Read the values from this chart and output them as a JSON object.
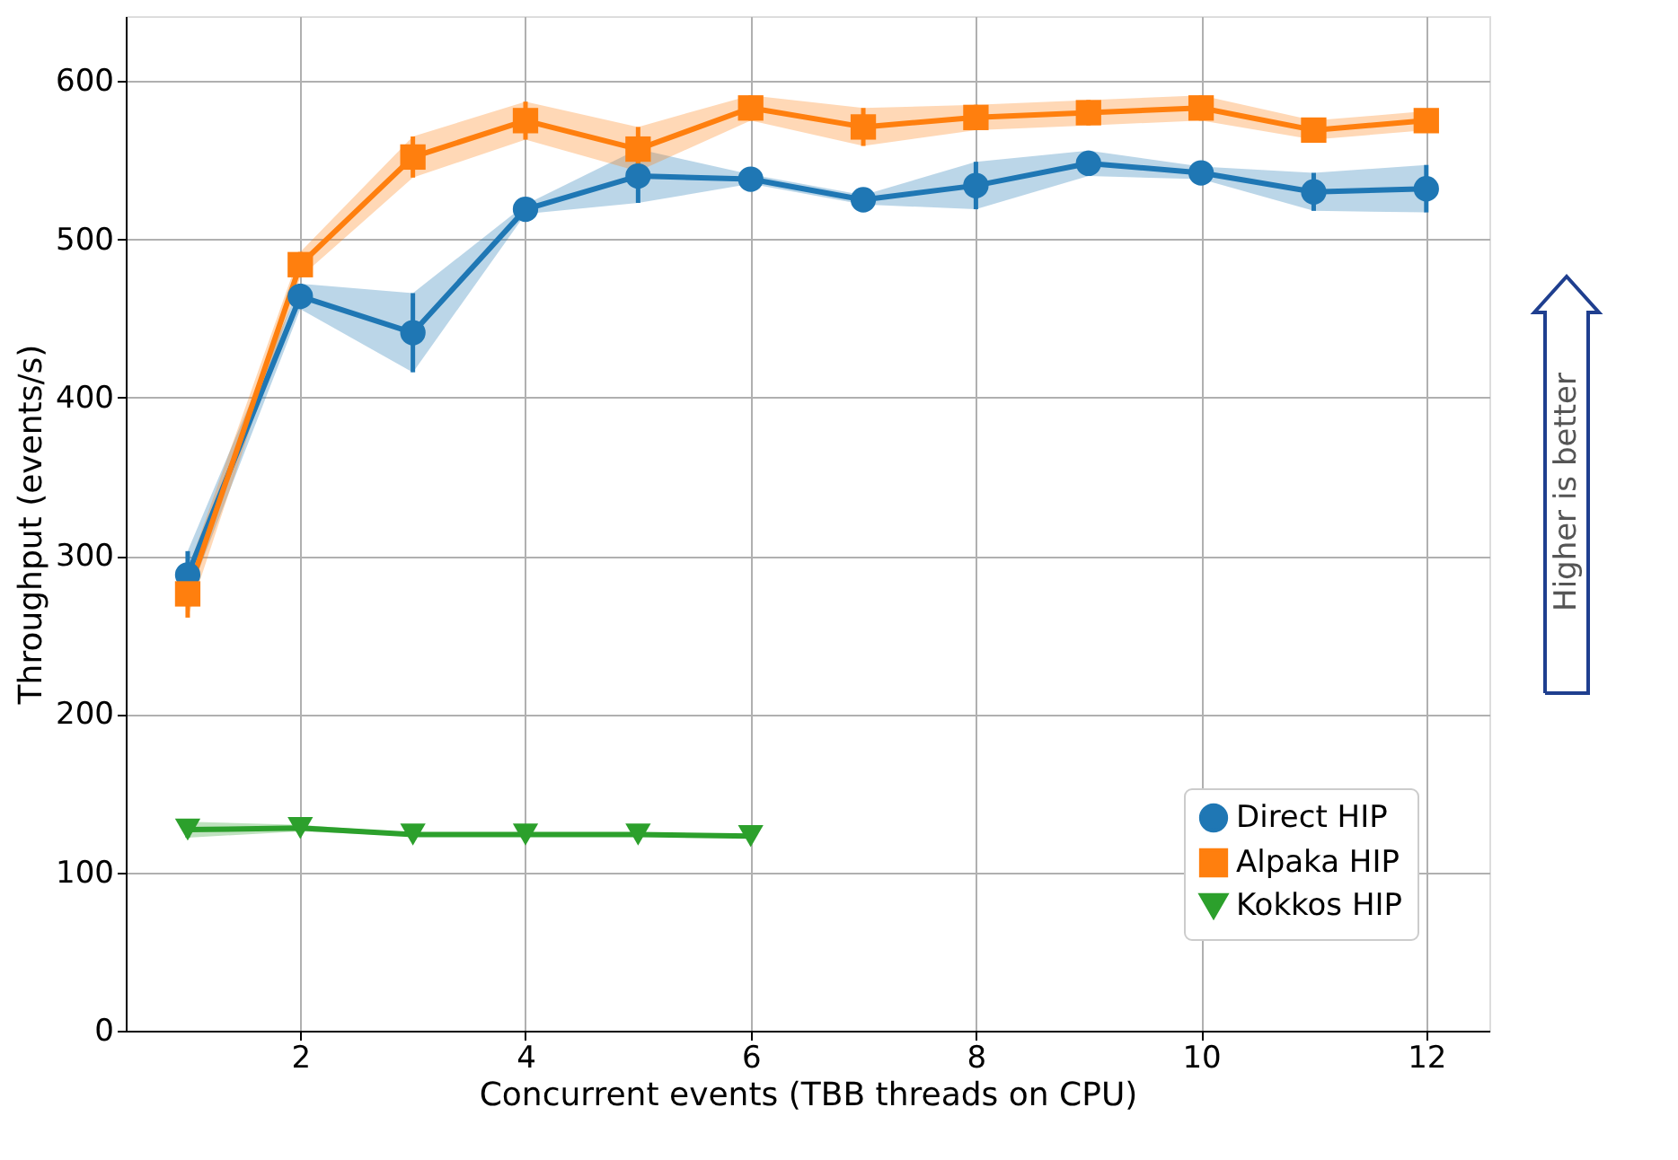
{
  "chart_data": {
    "type": "line",
    "xlabel": "Concurrent events (TBB threads on CPU)",
    "ylabel": "Throughput (events/s)",
    "xlim": [
      0.45,
      12.56
    ],
    "xticks": [
      2,
      4,
      6,
      8,
      10,
      12
    ],
    "ylim": [
      0,
      641
    ],
    "yticks": [
      0,
      100,
      200,
      300,
      400,
      500,
      600
    ],
    "grid": true,
    "legend": "bottom right",
    "annotations": [
      "Higher is better"
    ],
    "series": [
      {
        "name": "Direct HIP",
        "color": "#1f77b4",
        "marker": "circle",
        "x": [
          1,
          2,
          3,
          4,
          5,
          6,
          7,
          8,
          9,
          10,
          11,
          12
        ],
        "values": [
          288,
          464,
          441,
          519,
          540,
          538,
          525,
          534,
          548,
          542,
          530,
          532
        ],
        "errors": [
          15,
          8,
          25,
          3,
          17,
          3,
          3,
          15,
          8,
          4,
          12,
          15
        ],
        "lower": [
          273,
          456,
          416,
          516,
          523,
          535,
          522,
          519,
          540,
          538,
          518,
          517
        ],
        "upper": [
          303,
          472,
          466,
          522,
          557,
          541,
          528,
          549,
          556,
          546,
          542,
          547
        ]
      },
      {
        "name": "Alpaka HIP",
        "color": "#ff7f0e",
        "marker": "square",
        "x": [
          1,
          2,
          3,
          4,
          5,
          6,
          7,
          8,
          9,
          10,
          11,
          12
        ],
        "values": [
          276,
          484,
          552,
          575,
          557,
          583,
          571,
          577,
          580,
          583,
          569,
          575
        ],
        "errors": [
          15,
          8,
          13,
          12,
          14,
          8,
          12,
          8,
          8,
          8,
          6,
          6
        ],
        "lower": [
          261,
          476,
          539,
          563,
          543,
          575,
          559,
          569,
          572,
          575,
          563,
          569
        ],
        "upper": [
          291,
          492,
          565,
          587,
          571,
          591,
          583,
          585,
          588,
          591,
          575,
          581
        ]
      },
      {
        "name": "Kokkos HIP",
        "color": "#2ca02c",
        "marker": "triangle-down",
        "x": [
          1,
          2,
          3,
          4,
          5,
          6
        ],
        "values": [
          127,
          128,
          124,
          124,
          124,
          123
        ],
        "errors": [
          5,
          2,
          1,
          1,
          1,
          1
        ],
        "lower": [
          122,
          126,
          123,
          123,
          123,
          122
        ],
        "upper": [
          132,
          130,
          125,
          125,
          125,
          124
        ]
      }
    ]
  }
}
